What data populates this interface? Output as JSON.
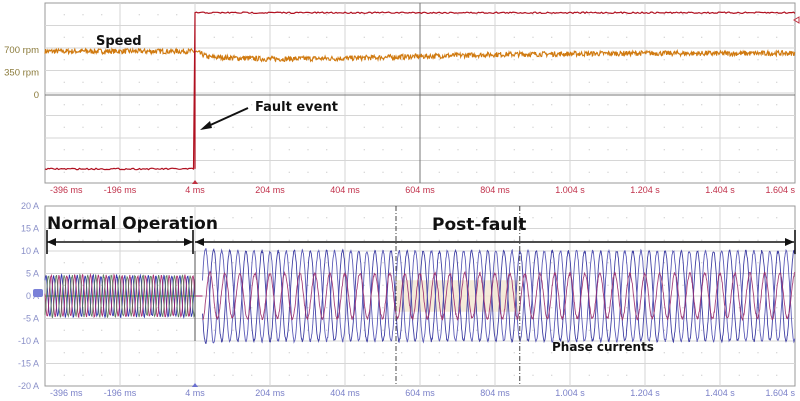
{
  "chart_data": [
    {
      "type": "line",
      "x_unit": "ms",
      "xlim": [
        -396,
        1604
      ],
      "x_tick_labels": [
        "-396 ms",
        "-196 ms",
        "4 ms",
        "204 ms",
        "404 ms",
        "604 ms",
        "804 ms",
        "1.004 s",
        "1.204 s",
        "1.404 s",
        "1.604 s"
      ],
      "y_tick_labels": [
        "700 rpm",
        "350 rpm",
        "0"
      ],
      "grid": true,
      "series": [
        {
          "name": "Speed",
          "color": "#d07a10",
          "x": [
            -396,
            0,
            20,
            40,
            200,
            400,
            600,
            800,
            1000,
            1200,
            1400,
            1604
          ],
          "y": [
            680,
            680,
            640,
            590,
            560,
            570,
            600,
            630,
            640,
            650,
            645,
            650
          ]
        },
        {
          "color": "#b01020",
          "x": [
            -396,
            4,
            4,
            1604
          ],
          "y": [
            -1150,
            -1150,
            1280,
            1280
          ]
        }
      ],
      "annotations": [
        {
          "text": "Speed"
        },
        {
          "text": "Fault event",
          "x": 4
        }
      ]
    },
    {
      "type": "line",
      "x_unit": "ms",
      "xlim": [
        -396,
        1604
      ],
      "ylim": [
        -20,
        20
      ],
      "x_tick_labels": [
        "-396 ms",
        "-196 ms",
        "4 ms",
        "204 ms",
        "404 ms",
        "604 ms",
        "804 ms",
        "1.004 s",
        "1.204 s",
        "1.404 s",
        "1.604 s"
      ],
      "y_tick_labels": [
        "20 A",
        "15 A",
        "10 A",
        "5 A",
        "0 A",
        "-5 A",
        "-10 A",
        "-15 A",
        "-20 A"
      ],
      "grid": true,
      "series": [
        {
          "color": "#1a1ea0",
          "segment": "normal",
          "amplitude_A": 4.5,
          "period_ms": 21
        },
        {
          "color": "#a01a60",
          "segment": "normal",
          "amplitude_A": 4.5,
          "period_ms": 21
        },
        {
          "color": "#507050",
          "segment": "normal",
          "amplitude_A": 4.5,
          "period_ms": 21
        },
        {
          "color": "#2a2a9a",
          "segment": "post-fault",
          "amplitude_A": 10,
          "period_ms": 43
        },
        {
          "color": "#4a4ab0",
          "segment": "post-fault",
          "amplitude_A": 10,
          "period_ms": 43
        },
        {
          "color": "#9a2a6a",
          "segment": "post-fault",
          "amplitude_A": 5,
          "period_ms": 40
        }
      ],
      "annotations": [
        {
          "text": "Normal Operation",
          "x_range": [
            -396,
            4
          ]
        },
        {
          "text": "Post-fault",
          "x_range": [
            4,
            1604
          ]
        },
        {
          "text": "Phase currents"
        }
      ],
      "cursors_ms": [
        540,
        870
      ]
    }
  ]
}
